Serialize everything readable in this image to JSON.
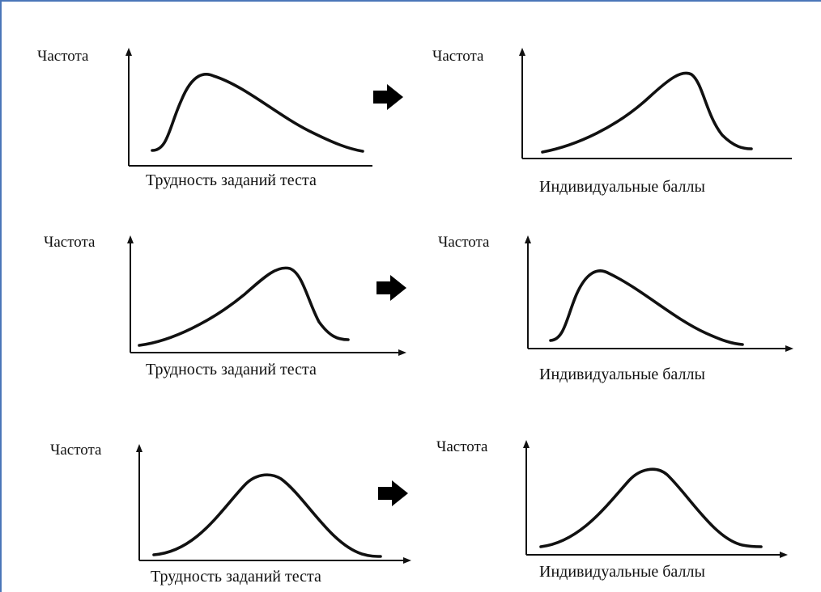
{
  "colors": {
    "frame": "#4a76b8",
    "ink": "#111111"
  },
  "rows": [
    {
      "left": {
        "ylabel": "Частота",
        "xlabel": "Трудность заданий теста",
        "shape": "right-skewed"
      },
      "right": {
        "ylabel": "Частота",
        "xlabel": "Индивидуальные баллы",
        "shape": "left-skewed"
      },
      "arrow_icon": "right-arrow-icon"
    },
    {
      "left": {
        "ylabel": "Частота",
        "xlabel": "Трудность заданий теста",
        "shape": "left-skewed"
      },
      "right": {
        "ylabel": "Частота",
        "xlabel": "Индивидуальные баллы",
        "shape": "right-skewed"
      },
      "arrow_icon": "right-arrow-icon"
    },
    {
      "left": {
        "ylabel": "Частота",
        "xlabel": "Трудность заданий теста",
        "shape": "symmetric"
      },
      "right": {
        "ylabel": "Частота",
        "xlabel": "Индивидуальные баллы",
        "shape": "symmetric"
      },
      "arrow_icon": "right-arrow-icon"
    }
  ]
}
